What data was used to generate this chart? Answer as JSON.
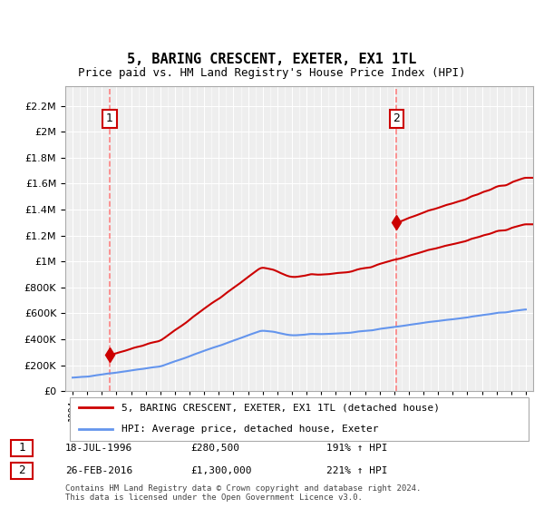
{
  "title": "5, BARING CRESCENT, EXETER, EX1 1TL",
  "subtitle": "Price paid vs. HM Land Registry's House Price Index (HPI)",
  "legend_line1": "5, BARING CRESCENT, EXETER, EX1 1TL (detached house)",
  "legend_line2": "HPI: Average price, detached house, Exeter",
  "sale1_date": "18-JUL-1996",
  "sale1_price": 280500,
  "sale1_hpi": "191% ↑ HPI",
  "sale2_date": "26-FEB-2016",
  "sale2_price": 1300000,
  "sale2_hpi": "221% ↑ HPI",
  "annotation_text": "Contains HM Land Registry data © Crown copyright and database right 2024.\nThis data is licensed under the Open Government Licence v3.0.",
  "hpi_color": "#6495ED",
  "price_color": "#CC0000",
  "dashed_line_color": "#FF6666",
  "sale1_x": 1996.54,
  "sale2_x": 2016.15,
  "ylim": [
    0,
    2300000
  ],
  "xlim_start": 1993.5,
  "xlim_end": 2025.5
}
